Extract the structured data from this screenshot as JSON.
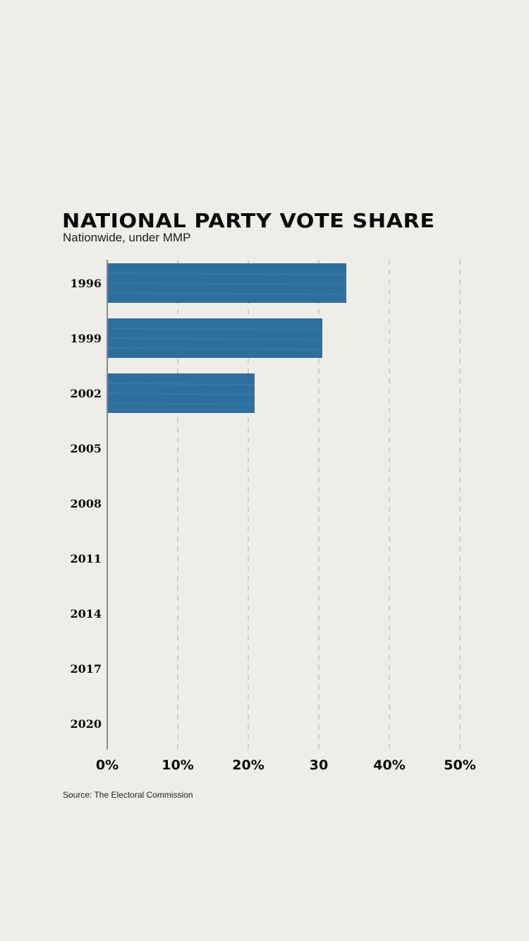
{
  "chart_data": {
    "type": "bar",
    "orientation": "horizontal",
    "title": "NATIONAL PARTY VOTE SHARE",
    "subtitle": "Nationwide, under MMP",
    "source": "Source: The Electoral Commission",
    "categories": [
      "1996",
      "1999",
      "2002",
      "2005",
      "2008",
      "2011",
      "2014",
      "2017",
      "2020"
    ],
    "values": [
      33.9,
      30.5,
      20.9,
      null,
      null,
      null,
      null,
      null,
      null
    ],
    "xlim": [
      0,
      50
    ],
    "xticks": [
      0,
      10,
      20,
      30,
      40,
      50
    ],
    "xtick_labels": [
      "0%",
      "10%",
      "20%",
      "30",
      "40%",
      "50%"
    ],
    "grid": "vertical dashed",
    "bar_color": "#2e6f9e"
  }
}
